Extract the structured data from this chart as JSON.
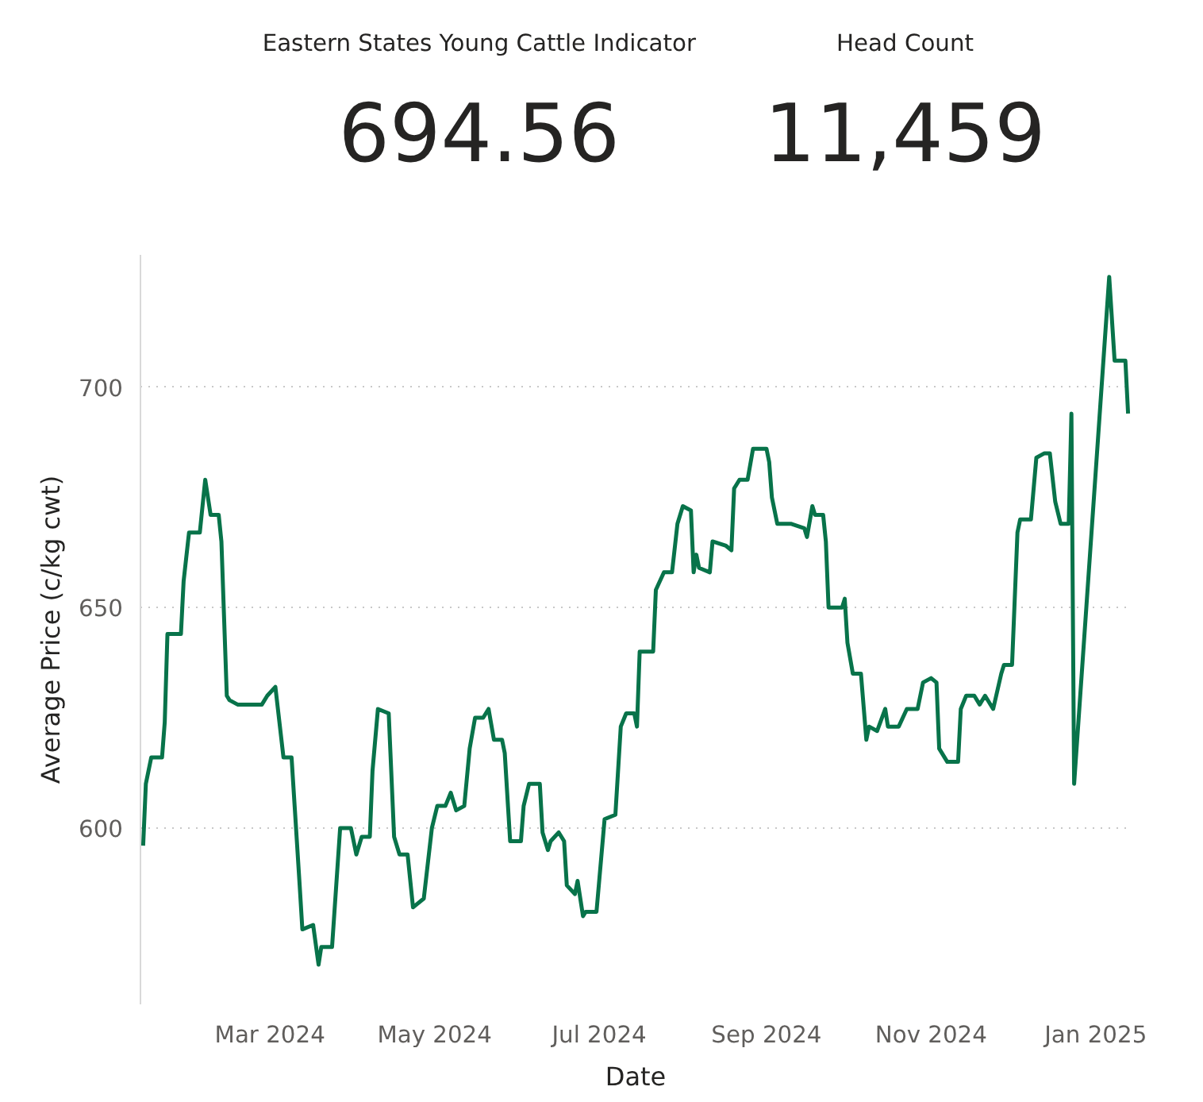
{
  "chart_data": [
    {
      "type": "other",
      "title": "Eastern States Young Cattle Indicator",
      "annotations": [
        "694.56"
      ]
    },
    {
      "type": "other",
      "title": "Head Count",
      "annotations": [
        "11,459"
      ]
    },
    {
      "type": "line",
      "xlabel": "Date",
      "ylabel": "Average Price (c/kg cwt)",
      "grid": "y",
      "xlim": [
        "2024-01-13",
        "2025-01-14"
      ],
      "ylim": [
        560,
        730
      ],
      "yticks": [
        600,
        650,
        700
      ],
      "xticks": [
        {
          "value": "2024-03-01",
          "label": "Mar 2024"
        },
        {
          "value": "2024-05-01",
          "label": "May 2024"
        },
        {
          "value": "2024-07-01",
          "label": "Jul 2024"
        },
        {
          "value": "2024-09-01",
          "label": "Sep 2024"
        },
        {
          "value": "2024-11-01",
          "label": "Nov 2024"
        },
        {
          "value": "2025-01-01",
          "label": "Jan 2025"
        }
      ],
      "x": [
        "2024-01-14",
        "2024-01-15",
        "2024-01-17",
        "2024-01-21",
        "2024-01-22",
        "2024-01-23",
        "2024-01-28",
        "2024-01-29",
        "2024-01-31",
        "2024-02-04",
        "2024-02-06",
        "2024-02-08",
        "2024-02-11",
        "2024-02-12",
        "2024-02-14",
        "2024-02-15",
        "2024-02-18",
        "2024-02-27",
        "2024-02-29",
        "2024-03-03",
        "2024-03-06",
        "2024-03-09",
        "2024-03-12",
        "2024-03-13",
        "2024-03-17",
        "2024-03-19",
        "2024-03-20",
        "2024-03-24",
        "2024-03-27",
        "2024-03-31",
        "2024-04-02",
        "2024-04-04",
        "2024-04-07",
        "2024-04-08",
        "2024-04-10",
        "2024-04-14",
        "2024-04-16",
        "2024-04-18",
        "2024-04-21",
        "2024-04-23",
        "2024-04-27",
        "2024-04-30",
        "2024-05-02",
        "2024-05-05",
        "2024-05-07",
        "2024-05-09",
        "2024-05-12",
        "2024-05-14",
        "2024-05-16",
        "2024-05-19",
        "2024-05-21",
        "2024-05-23",
        "2024-05-26",
        "2024-05-27",
        "2024-05-29",
        "2024-06-02",
        "2024-06-03",
        "2024-06-05",
        "2024-06-09",
        "2024-06-10",
        "2024-06-12",
        "2024-06-13",
        "2024-06-16",
        "2024-06-18",
        "2024-06-19",
        "2024-06-22",
        "2024-06-23",
        "2024-06-25",
        "2024-06-26",
        "2024-06-30",
        "2024-07-03",
        "2024-07-07",
        "2024-07-09",
        "2024-07-11",
        "2024-07-14",
        "2024-07-15",
        "2024-07-16",
        "2024-07-21",
        "2024-07-22",
        "2024-07-25",
        "2024-07-28",
        "2024-07-30",
        "2024-08-01",
        "2024-08-04",
        "2024-08-05",
        "2024-08-06",
        "2024-08-07",
        "2024-08-11",
        "2024-08-12",
        "2024-08-17",
        "2024-08-19",
        "2024-08-20",
        "2024-08-22",
        "2024-08-25",
        "2024-08-27",
        "2024-09-01",
        "2024-09-02",
        "2024-09-03",
        "2024-09-05",
        "2024-09-10",
        "2024-09-15",
        "2024-09-16",
        "2024-09-18",
        "2024-09-19",
        "2024-09-22",
        "2024-09-23",
        "2024-09-24",
        "2024-09-29",
        "2024-09-30",
        "2024-10-01",
        "2024-10-03",
        "2024-10-06",
        "2024-10-08",
        "2024-10-09",
        "2024-10-12",
        "2024-10-15",
        "2024-10-16",
        "2024-10-20",
        "2024-10-23",
        "2024-10-27",
        "2024-10-29",
        "2024-11-01",
        "2024-11-03",
        "2024-11-04",
        "2024-11-07",
        "2024-11-11",
        "2024-11-12",
        "2024-11-14",
        "2024-11-17",
        "2024-11-19",
        "2024-11-21",
        "2024-11-24",
        "2024-11-27",
        "2024-11-28",
        "2024-12-01",
        "2024-12-03",
        "2024-12-04",
        "2024-12-08",
        "2024-12-10",
        "2024-12-13",
        "2024-12-15",
        "2024-12-17",
        "2024-12-19",
        "2024-12-22",
        "2024-12-23",
        "2024-12-24",
        "2025-01-06",
        "2025-01-08",
        "2025-01-12",
        "2025-01-13"
      ],
      "series": [
        {
          "color": "#08734a",
          "values": [
            596,
            610,
            616,
            616,
            624,
            644,
            644,
            656,
            667,
            667,
            679,
            671,
            671,
            665,
            630,
            629,
            628,
            628,
            630,
            632,
            616,
            616,
            587,
            577,
            578,
            569,
            573,
            573,
            600,
            600,
            594,
            598,
            598,
            613,
            627,
            626,
            598,
            594,
            594,
            582,
            584,
            600,
            605,
            605,
            608,
            604,
            605,
            618,
            625,
            625,
            627,
            620,
            620,
            617,
            597,
            597,
            605,
            610,
            610,
            599,
            595,
            597,
            599,
            597,
            587,
            585,
            588,
            580,
            581,
            581,
            602,
            603,
            623,
            626,
            626,
            623,
            640,
            640,
            654,
            658,
            658,
            669,
            673,
            672,
            658,
            662,
            659,
            658,
            665,
            664,
            663,
            677,
            679,
            679,
            686,
            686,
            683,
            675,
            669,
            669,
            668,
            666,
            673,
            671,
            671,
            665,
            650,
            650,
            652,
            642,
            635,
            635,
            620,
            623,
            622,
            627,
            623,
            623,
            627,
            627,
            633,
            634,
            633,
            618,
            615,
            615,
            627,
            630,
            630,
            628,
            630,
            627,
            635,
            637,
            637,
            667,
            670,
            670,
            684,
            685,
            685,
            674,
            669,
            669,
            694,
            610,
            725,
            706,
            706,
            694
          ]
        }
      ]
    }
  ]
}
